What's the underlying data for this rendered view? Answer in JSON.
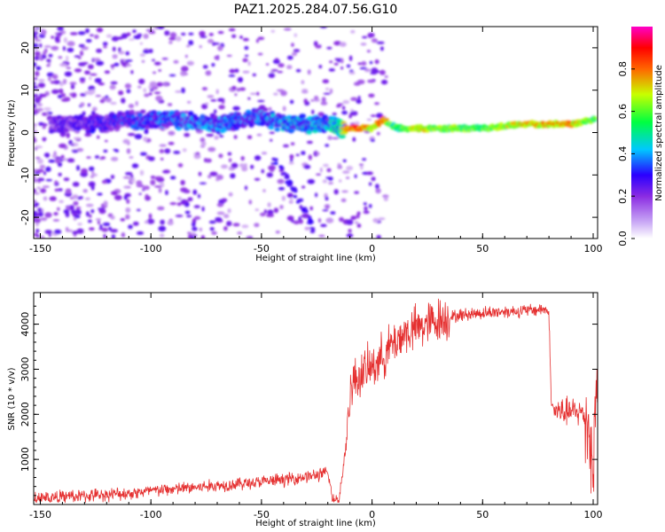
{
  "title": "PAZ1.2025.284.07.56.G10",
  "chart_data": [
    {
      "type": "heatmap",
      "name": "spectrogram",
      "xlabel": "Height of straight line (km)",
      "ylabel": "Frequency (Hz)",
      "xlim": [
        -153,
        102
      ],
      "ylim": [
        -25,
        25
      ],
      "xticks": [
        -150,
        -100,
        -50,
        0,
        50,
        100
      ],
      "yticks": [
        20,
        10,
        0,
        -10,
        -20
      ],
      "colorbar": {
        "label": "Normalized spectral amplitude",
        "range": [
          0,
          1
        ],
        "ticks": [
          0.0,
          0.2,
          0.4,
          0.6,
          0.8
        ],
        "colors": [
          "#ffffff",
          "#8a2be2",
          "#2a00ff",
          "#00c8ff",
          "#00ff40",
          "#c8ff00",
          "#ff6600",
          "#ff0000",
          "#ff00c8"
        ]
      },
      "ridge": {
        "x": [
          -150,
          -130,
          -110,
          -90,
          -70,
          -50,
          -40,
          -30,
          -20,
          -15,
          -10,
          -5,
          0,
          5,
          8,
          12,
          20,
          30,
          50,
          70,
          90,
          100
        ],
        "freq": [
          2,
          2,
          3,
          3,
          2,
          4,
          2,
          2,
          2,
          1,
          1,
          1,
          1,
          3,
          2,
          1,
          1,
          1,
          1,
          2,
          2,
          3
        ],
        "amplitude": [
          0.15,
          0.2,
          0.25,
          0.3,
          0.3,
          0.3,
          0.35,
          0.35,
          0.35,
          0.45,
          0.8,
          0.85,
          0.6,
          0.9,
          0.55,
          0.5,
          0.65,
          0.6,
          0.55,
          0.7,
          0.75,
          0.55
        ]
      }
    },
    {
      "type": "line",
      "name": "snr",
      "xlabel": "Height of straight line (km)",
      "ylabel": "SNR (10 * v/v)",
      "xlim": [
        -153,
        102
      ],
      "ylim": [
        0,
        4700
      ],
      "xticks": [
        -150,
        -100,
        -50,
        0,
        50,
        100
      ],
      "yticks": [
        1000,
        2000,
        3000,
        4000
      ],
      "color": "#e53030",
      "x": [
        -153,
        -140,
        -130,
        -120,
        -110,
        -100,
        -90,
        -80,
        -70,
        -60,
        -50,
        -40,
        -30,
        -25,
        -20,
        -18,
        -15,
        -12,
        -10,
        -8,
        -5,
        0,
        5,
        10,
        15,
        20,
        25,
        30,
        35,
        40,
        45,
        50,
        60,
        70,
        75,
        78,
        80,
        81,
        82,
        85,
        90,
        95,
        98,
        100,
        101,
        102
      ],
      "y": [
        150,
        170,
        190,
        220,
        250,
        300,
        340,
        380,
        420,
        460,
        500,
        550,
        620,
        650,
        700,
        180,
        80,
        1200,
        2500,
        2750,
        2900,
        3050,
        3300,
        3600,
        3800,
        3900,
        4000,
        4100,
        4150,
        4200,
        4230,
        4250,
        4280,
        4300,
        4320,
        4340,
        4250,
        2300,
        2100,
        2050,
        2050,
        2050,
        1800,
        600,
        2200,
        3000
      ],
      "noise": 130
    }
  ]
}
